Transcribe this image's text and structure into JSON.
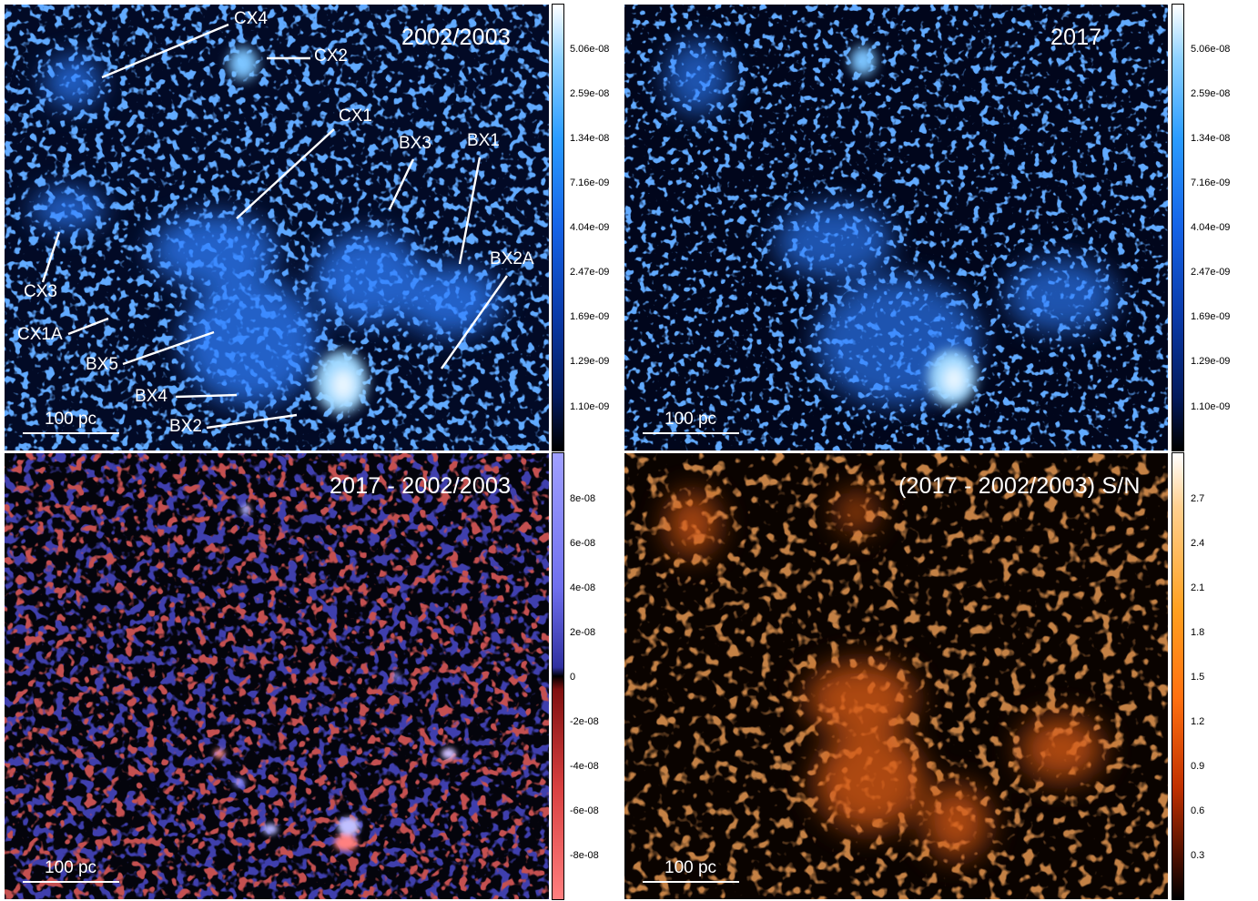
{
  "panels": {
    "top_left": {
      "title": "2002/2003",
      "scale_label": "100 pc"
    },
    "top_right": {
      "title": "2017",
      "scale_label": "100 pc"
    },
    "bottom_left": {
      "title": "2017 - 2002/2003",
      "scale_label": "100 pc"
    },
    "bottom_right": {
      "title": "(2017 - 2002/2003) S/N",
      "scale_label": "100 pc"
    }
  },
  "region_labels": [
    "CX4",
    "CX2",
    "CX1",
    "BX3",
    "BX1",
    "BX2A",
    "CX3",
    "CX1A",
    "BX5",
    "BX4",
    "BX2"
  ],
  "colorbars": {
    "flux": {
      "ticks": [
        "5.06e-08",
        "2.59e-08",
        "1.34e-08",
        "7.16e-09",
        "4.04e-09",
        "2.47e-09",
        "1.69e-09",
        "1.29e-09",
        "1.10e-09"
      ]
    },
    "difference": {
      "ticks": [
        "8e-08",
        "6e-08",
        "4e-08",
        "2e-08",
        "0",
        "-2e-08",
        "-4e-08",
        "-6e-08",
        "-8e-08"
      ]
    },
    "snr": {
      "ticks": [
        "2.7",
        "2.4",
        "2.1",
        "1.8",
        "1.5",
        "1.2",
        "0.9",
        "0.6",
        "0.3"
      ]
    }
  },
  "colors": {
    "flux_bright": "#4fa8ff",
    "diff_positive": "#8080ff",
    "diff_negative": "#ff7070",
    "snr": "#e86a1c"
  }
}
